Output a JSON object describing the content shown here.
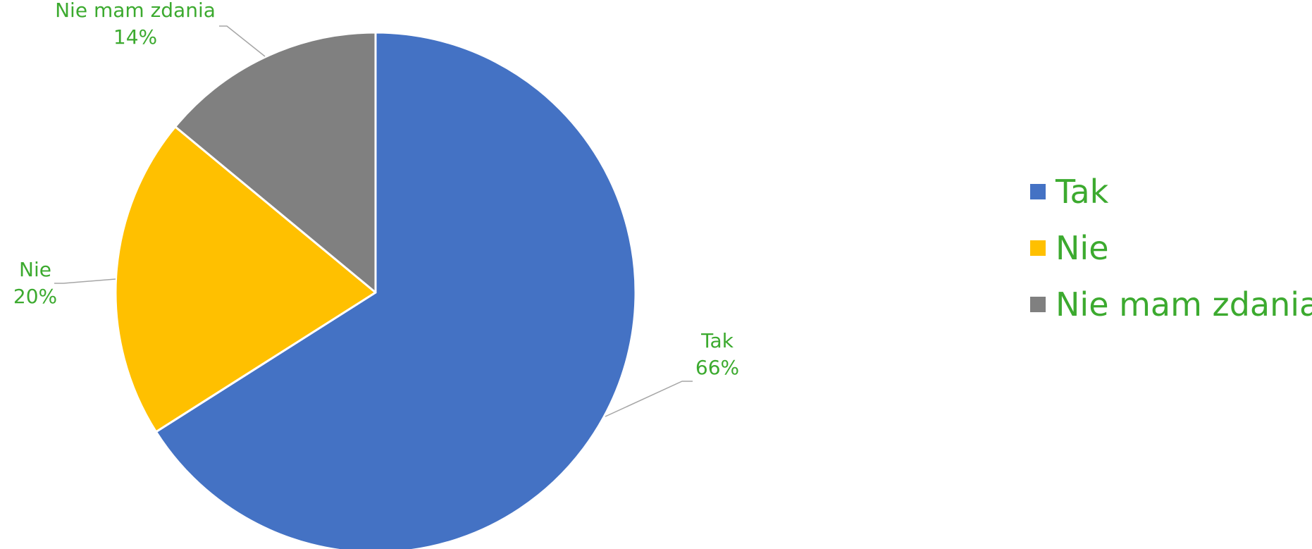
{
  "chart_data": {
    "type": "pie",
    "title": "",
    "categories": [
      "Tak",
      "Nie",
      "Nie mam zdania"
    ],
    "values": [
      66,
      20,
      14
    ],
    "value_unit": "%",
    "data_labels": [
      {
        "category": "Tak",
        "percent": "66%"
      },
      {
        "category": "Nie",
        "percent": "20%"
      },
      {
        "category": "Nie mam zdania",
        "percent": "14%"
      }
    ],
    "colors": [
      "#4472C4",
      "#FFC000",
      "#808080"
    ],
    "label_color": "#3CAA2F",
    "leader_line_color": "#A6A6A6",
    "legend": {
      "placement": "right",
      "items": [
        "Tak",
        "Nie",
        "Nie mam zdania"
      ]
    },
    "start_angle": "12 o'clock",
    "direction": "clockwise"
  }
}
